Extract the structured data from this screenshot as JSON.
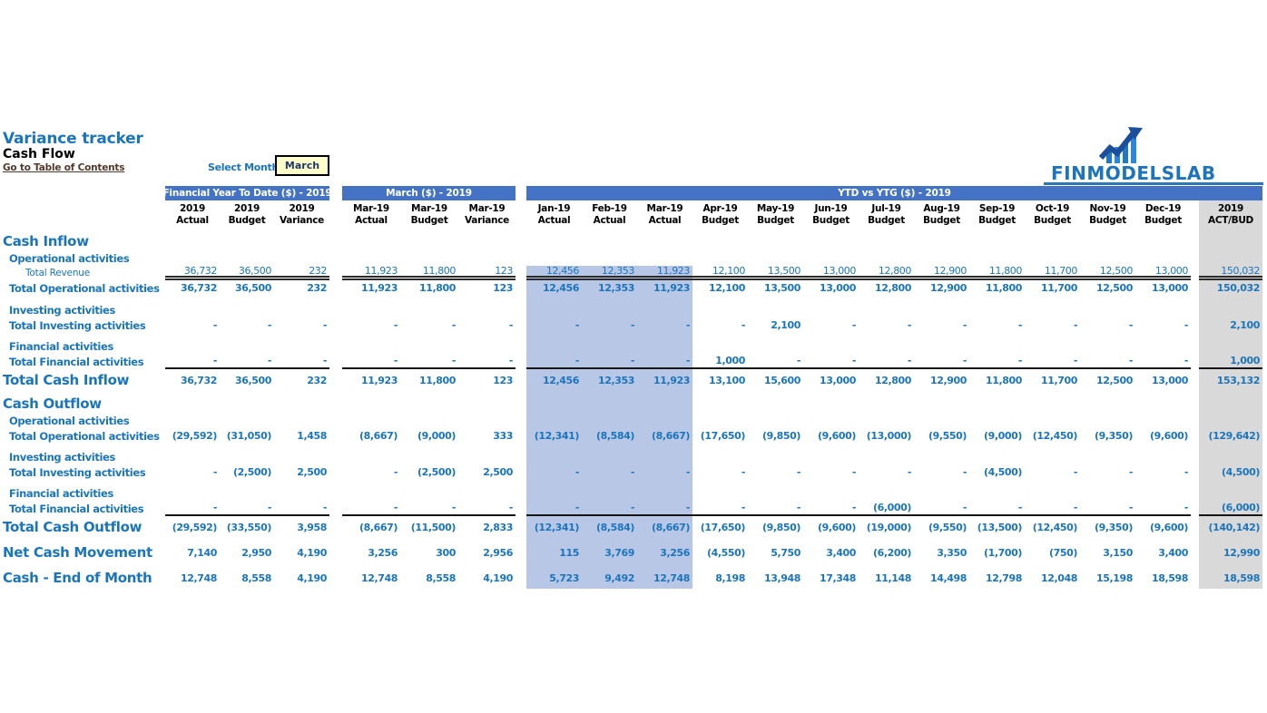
{
  "header": {
    "title": "Variance tracker",
    "subtitle": "Cash Flow",
    "toc_link": "Go to Table of Contents",
    "select_month_label": "Select Month",
    "selected_month": "March",
    "logo": "FINMODELSLAB"
  },
  "bands": [
    "Financial Year To Date ($) - 2019",
    "March ($) - 2019",
    "YTD vs YTG  ($) - 2019"
  ],
  "columns": {
    "fytd": [
      [
        "2019",
        "Actual"
      ],
      [
        "2019",
        "Budget"
      ],
      [
        "2019",
        "Variance"
      ]
    ],
    "march": [
      [
        "Mar-19",
        "Actual"
      ],
      [
        "Mar-19",
        "Budget"
      ],
      [
        "Mar-19",
        "Variance"
      ]
    ],
    "monthly": [
      [
        "Jan-19",
        "Actual"
      ],
      [
        "Feb-19",
        "Actual"
      ],
      [
        "Mar-19",
        "Actual"
      ],
      [
        "Apr-19",
        "Budget"
      ],
      [
        "May-19",
        "Budget"
      ],
      [
        "Jun-19",
        "Budget"
      ],
      [
        "Jul-19",
        "Budget"
      ],
      [
        "Aug-19",
        "Budget"
      ],
      [
        "Sep-19",
        "Budget"
      ],
      [
        "Oct-19",
        "Budget"
      ],
      [
        "Nov-19",
        "Budget"
      ],
      [
        "Dec-19",
        "Budget"
      ]
    ],
    "actbud": [
      "2019",
      "ACT/BUD"
    ]
  },
  "rows": [
    {
      "kind": "section",
      "label": "Cash Inflow"
    },
    {
      "kind": "sublabel",
      "label": "Operational activities"
    },
    {
      "kind": "detail",
      "label": "Total Revenue",
      "border": "double",
      "fytd": [
        "36,732",
        "36,500",
        "232"
      ],
      "march": [
        "11,923",
        "11,800",
        "123"
      ],
      "monthly": [
        "12,456",
        "12,353",
        "11,923",
        "12,100",
        "13,500",
        "13,000",
        "12,800",
        "12,900",
        "11,800",
        "11,700",
        "12,500",
        "13,000"
      ],
      "actbud": "150,032"
    },
    {
      "kind": "subtotal",
      "label": "Total Operational activities",
      "fytd": [
        "36,732",
        "36,500",
        "232"
      ],
      "march": [
        "11,923",
        "11,800",
        "123"
      ],
      "monthly": [
        "12,456",
        "12,353",
        "11,923",
        "12,100",
        "13,500",
        "13,000",
        "12,800",
        "12,900",
        "11,800",
        "11,700",
        "12,500",
        "13,000"
      ],
      "actbud": "150,032"
    },
    {
      "kind": "sublabel",
      "label": "Investing activities"
    },
    {
      "kind": "subtotal",
      "label": "Total Investing activities",
      "fytd": [
        "-",
        "-",
        "-"
      ],
      "march": [
        "-",
        "-",
        "-"
      ],
      "monthly": [
        "-",
        "-",
        "-",
        "-",
        "2,100",
        "-",
        "-",
        "-",
        "-",
        "-",
        "-",
        "-"
      ],
      "actbud": "2,100"
    },
    {
      "kind": "sublabel",
      "label": "Financial activities"
    },
    {
      "kind": "subtotal",
      "label": "Total Financial activities",
      "border": "thick",
      "fytd": [
        "-",
        "-",
        "-"
      ],
      "march": [
        "-",
        "-",
        "-"
      ],
      "monthly": [
        "-",
        "-",
        "-",
        "1,000",
        "-",
        "-",
        "-",
        "-",
        "-",
        "-",
        "-",
        "-"
      ],
      "actbud": "1,000"
    },
    {
      "kind": "total",
      "label": "Total Cash Inflow",
      "fytd": [
        "36,732",
        "36,500",
        "232"
      ],
      "march": [
        "11,923",
        "11,800",
        "123"
      ],
      "monthly": [
        "12,456",
        "12,353",
        "11,923",
        "13,100",
        "15,600",
        "13,000",
        "12,800",
        "12,900",
        "11,800",
        "11,700",
        "12,500",
        "13,000"
      ],
      "actbud": "153,132"
    },
    {
      "kind": "section",
      "label": "Cash Outflow"
    },
    {
      "kind": "sublabel",
      "label": "Operational activities"
    },
    {
      "kind": "subtotal",
      "label": "Total Operational activities",
      "fytd": [
        "(29,592)",
        "(31,050)",
        "1,458"
      ],
      "march": [
        "(8,667)",
        "(9,000)",
        "333"
      ],
      "monthly": [
        "(12,341)",
        "(8,584)",
        "(8,667)",
        "(17,650)",
        "(9,850)",
        "(9,600)",
        "(13,000)",
        "(9,550)",
        "(9,000)",
        "(12,450)",
        "(9,350)",
        "(9,600)"
      ],
      "actbud": "(129,642)"
    },
    {
      "kind": "sublabel",
      "label": "Investing activities"
    },
    {
      "kind": "subtotal",
      "label": "Total Investing activities",
      "fytd": [
        "-",
        "(2,500)",
        "2,500"
      ],
      "march": [
        "-",
        "(2,500)",
        "2,500"
      ],
      "monthly": [
        "-",
        "-",
        "-",
        "-",
        "-",
        "-",
        "-",
        "-",
        "(4,500)",
        "-",
        "-",
        "-"
      ],
      "actbud": "(4,500)"
    },
    {
      "kind": "sublabel",
      "label": "Financial activities"
    },
    {
      "kind": "subtotal",
      "label": "Total Financial activities",
      "border": "thick",
      "fytd": [
        "-",
        "-",
        "-"
      ],
      "march": [
        "-",
        "-",
        "-"
      ],
      "monthly": [
        "-",
        "-",
        "-",
        "-",
        "-",
        "-",
        "(6,000)",
        "-",
        "-",
        "-",
        "-",
        "-"
      ],
      "actbud": "(6,000)"
    },
    {
      "kind": "total",
      "label": "Total Cash Outflow",
      "fytd": [
        "(29,592)",
        "(33,550)",
        "3,958"
      ],
      "march": [
        "(8,667)",
        "(11,500)",
        "2,833"
      ],
      "monthly": [
        "(12,341)",
        "(8,584)",
        "(8,667)",
        "(17,650)",
        "(9,850)",
        "(9,600)",
        "(19,000)",
        "(9,550)",
        "(13,500)",
        "(12,450)",
        "(9,350)",
        "(9,600)"
      ],
      "actbud": "(140,142)"
    },
    {
      "kind": "total",
      "label": "Net Cash Movement",
      "fytd": [
        "7,140",
        "2,950",
        "4,190"
      ],
      "march": [
        "3,256",
        "300",
        "2,956"
      ],
      "monthly": [
        "115",
        "3,769",
        "3,256",
        "(4,550)",
        "5,750",
        "3,400",
        "(6,200)",
        "3,350",
        "(1,700)",
        "(750)",
        "3,150",
        "3,400"
      ],
      "actbud": "12,990"
    },
    {
      "kind": "total",
      "label": "Cash - End of Month",
      "fytd": [
        "12,748",
        "8,558",
        "4,190"
      ],
      "march": [
        "12,748",
        "8,558",
        "4,190"
      ],
      "monthly": [
        "5,723",
        "9,492",
        "12,748",
        "8,198",
        "13,948",
        "17,348",
        "11,148",
        "14,498",
        "12,798",
        "12,048",
        "15,198",
        "18,598"
      ],
      "actbud": "18,598"
    }
  ],
  "colors": {
    "accent": "#1B75BC",
    "band": "#4472C4",
    "highlight": "#B8C7E6",
    "column_gray": "#D9D9D9",
    "select_bg": "#FFFFCC",
    "link": "#53392B",
    "logo": "#1E73BE"
  }
}
